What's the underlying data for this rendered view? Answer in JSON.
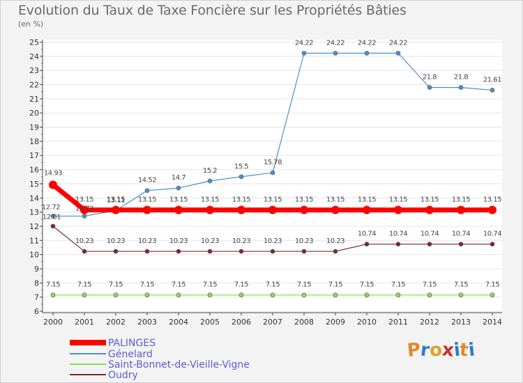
{
  "title": "Evolution du Taux de Taxe Foncière sur les Propriétés Bâties",
  "unit": "(en %)",
  "brand": {
    "letters": [
      "P",
      "r",
      "o",
      "x",
      "i",
      "t",
      "i"
    ],
    "colors": [
      "#e08a2a",
      "#2f7fc0",
      "#e0a020",
      "#d03030",
      "#2f7fc0",
      "#e08a2a",
      "#2f7fc0"
    ]
  },
  "chart_data": {
    "type": "line",
    "title": "Evolution du Taux de Taxe Foncière sur les Propriétés Bâties",
    "ylabel": "(en %)",
    "xlabel": "",
    "ylim": [
      6,
      25
    ],
    "yticks": [
      "6",
      "7",
      "8",
      "9",
      "10",
      "11",
      "12",
      "13",
      "14",
      "15",
      "16",
      "17",
      "18",
      "19",
      "20",
      "21",
      "22",
      "23",
      "24",
      "25"
    ],
    "categories": [
      "2000",
      "2001",
      "2002",
      "2003",
      "2004",
      "2005",
      "2006",
      "2007",
      "2008",
      "2009",
      "2010",
      "2011",
      "2012",
      "2013",
      "2014"
    ],
    "legend_position": "bottom-left",
    "series": [
      {
        "name": "PALINGES",
        "color": "#ff0000",
        "values": [
          14.93,
          13.15,
          13.15,
          13.15,
          13.15,
          13.15,
          13.15,
          13.15,
          13.15,
          13.15,
          13.15,
          13.15,
          13.15,
          13.15,
          13.15
        ],
        "labels": [
          "14.93",
          "13.15",
          "13.15",
          "13.15",
          "13.15",
          "13.15",
          "13.15",
          "13.15",
          "13.15",
          "13.15",
          "13.15",
          "13.15",
          "13.15",
          "13.15",
          "13.15"
        ]
      },
      {
        "name": "Génelard",
        "color": "#4a90c8",
        "values": [
          12.72,
          12.72,
          13.11,
          14.52,
          14.7,
          15.2,
          15.5,
          15.78,
          24.22,
          24.22,
          24.22,
          24.22,
          21.8,
          21.8,
          21.61
        ],
        "labels": [
          "12.72",
          "12.72",
          "13.11",
          "14.52",
          "14.7",
          "15.2",
          "15.5",
          "15.78",
          "24.22",
          "24.22",
          "24.22",
          "24.22",
          "21.8",
          "21.8",
          "21.61"
        ]
      },
      {
        "name": "Saint-Bonnet-de-Vieille-Vigne",
        "color": "#88dd55",
        "values": [
          7.15,
          7.15,
          7.15,
          7.15,
          7.15,
          7.15,
          7.15,
          7.15,
          7.15,
          7.15,
          7.15,
          7.15,
          7.15,
          7.15,
          7.15
        ],
        "labels": [
          "7.15",
          "7.15",
          "7.15",
          "7.15",
          "7.15",
          "7.15",
          "7.15",
          "7.15",
          "7.15",
          "7.15",
          "7.15",
          "7.15",
          "7.15",
          "7.15",
          "7.15"
        ]
      },
      {
        "name": "Oudry",
        "color": "#7a2a2a",
        "values": [
          12.01,
          10.23,
          10.23,
          10.23,
          10.23,
          10.23,
          10.23,
          10.23,
          10.23,
          10.23,
          10.74,
          10.74,
          10.74,
          10.74,
          10.74
        ],
        "labels": [
          "12.01",
          "10.23",
          "10.23",
          "10.23",
          "10.23",
          "10.23",
          "10.23",
          "10.23",
          "10.23",
          "10.23",
          "10.74",
          "10.74",
          "10.74",
          "10.74",
          "10.74"
        ]
      }
    ]
  }
}
